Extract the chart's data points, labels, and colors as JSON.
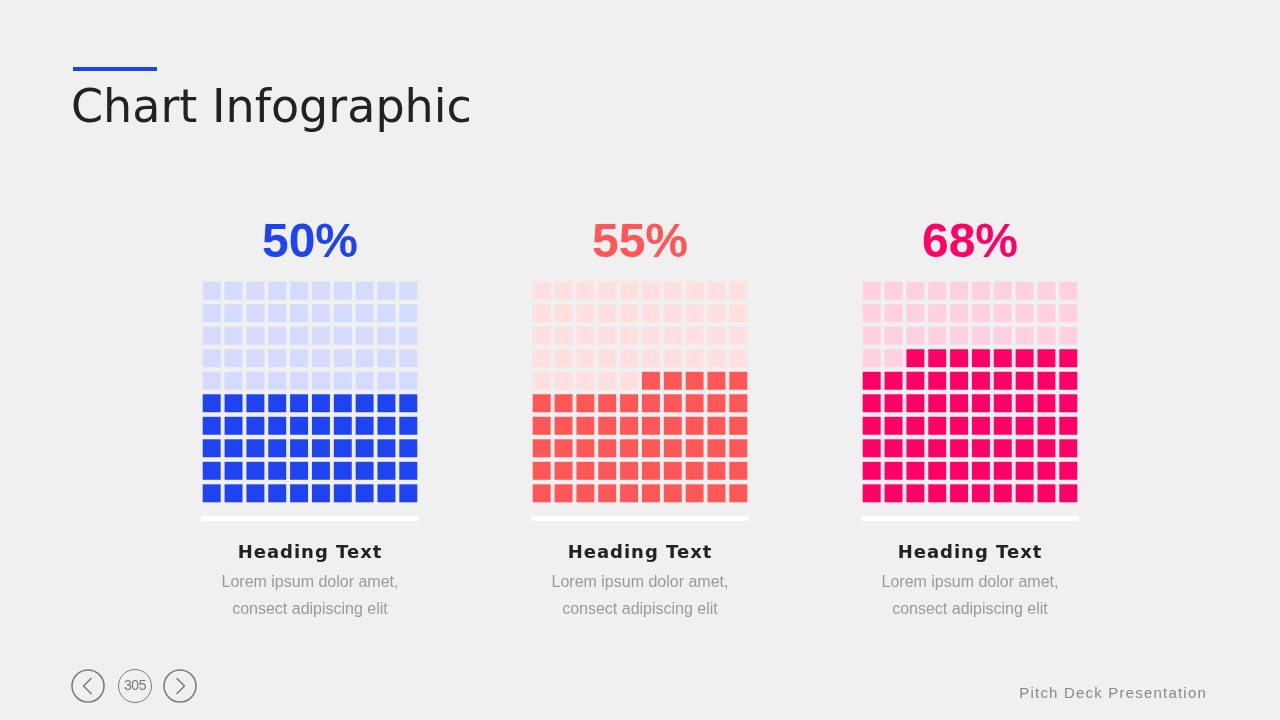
{
  "chart_data": {
    "type": "other",
    "title": "Chart Infographic",
    "categories": [
      "Heading Text",
      "Heading Text",
      "Heading Text"
    ],
    "values": [
      50,
      55,
      68
    ],
    "colors": [
      "#1f44ef",
      "#ff5757",
      "#ff0066"
    ],
    "value_labels": [
      "50%",
      "55%",
      "68%"
    ],
    "annotations": [
      "Lorem ipsum dolor amet,\nconsect adipiscing elit",
      "Lorem ipsum dolor amet,\nconsect adipiscing elit",
      "Lorem ipsum dolor amet,\nconsect adipiscing elit",
      "305",
      "Pitch Deck Presentation"
    ]
  }
}
